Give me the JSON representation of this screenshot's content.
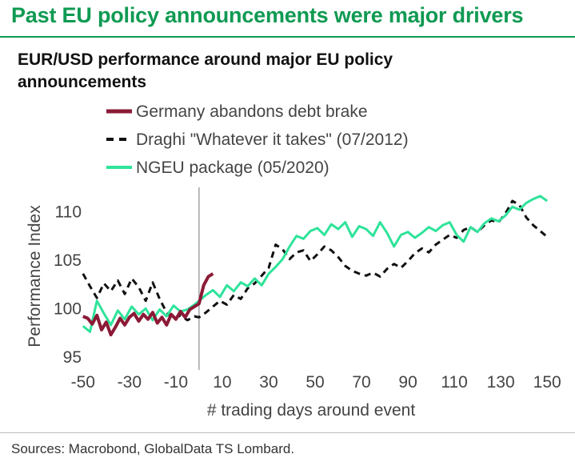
{
  "header": {
    "title": "Past EU policy announcements were major drivers"
  },
  "footer": {
    "source": "Sources: Macrobond, GlobalData TS Lombard."
  },
  "colors": {
    "accent": "#0f9a52",
    "germany": "#8b1a36",
    "draghi": "#111111",
    "ngeu": "#2fe39a"
  },
  "chart_data": {
    "type": "line",
    "title": "EUR/USD performance around major EU policy announcements",
    "xlabel": "# trading days around event",
    "ylabel": "Performance Index",
    "xlim": [
      -52,
      152
    ],
    "ylim": [
      94,
      113
    ],
    "xticks": [
      -50,
      -30,
      -10,
      10,
      30,
      50,
      70,
      90,
      110,
      130,
      150
    ],
    "yticks": [
      95,
      100,
      105,
      110
    ],
    "event_marker_x": 0,
    "legend_position": "top-center",
    "series": [
      {
        "name": "Germany abandons debt brake",
        "style": "solid",
        "color": "#8b1a36",
        "x": [
          -50,
          -48,
          -46,
          -44,
          -42,
          -40,
          -38,
          -36,
          -34,
          -32,
          -30,
          -28,
          -26,
          -24,
          -22,
          -20,
          -18,
          -16,
          -14,
          -12,
          -10,
          -8,
          -6,
          -4,
          -2,
          0,
          2,
          4,
          6
        ],
        "y": [
          99.2,
          99.0,
          98.4,
          99.3,
          97.8,
          98.6,
          97.3,
          98.1,
          99.0,
          98.3,
          99.1,
          99.5,
          98.7,
          99.4,
          98.9,
          99.6,
          98.5,
          99.1,
          98.3,
          99.4,
          98.9,
          99.7,
          99.1,
          99.9,
          100.2,
          100.5,
          102.4,
          103.3,
          103.6
        ]
      },
      {
        "name": "Draghi \"Whatever it takes\" (07/2012)",
        "style": "dashed",
        "color": "#111111",
        "x": [
          -50,
          -47,
          -44,
          -41,
          -38,
          -35,
          -32,
          -29,
          -26,
          -23,
          -20,
          -17,
          -14,
          -11,
          -8,
          -5,
          -2,
          0,
          3,
          6,
          9,
          12,
          15,
          18,
          21,
          24,
          27,
          30,
          33,
          36,
          39,
          42,
          45,
          48,
          51,
          54,
          57,
          60,
          63,
          66,
          69,
          72,
          75,
          78,
          81,
          84,
          87,
          90,
          93,
          96,
          99,
          102,
          105,
          108,
          111,
          114,
          117,
          120,
          123,
          126,
          129,
          132,
          135,
          138,
          141,
          144,
          147,
          150
        ],
        "y": [
          103.6,
          102.3,
          101.1,
          102.6,
          101.8,
          102.9,
          101.5,
          103.1,
          102.2,
          100.8,
          102.7,
          101.0,
          99.6,
          98.9,
          99.3,
          98.8,
          99.2,
          99.1,
          99.6,
          100.2,
          100.8,
          100.4,
          101.4,
          101.0,
          102.1,
          102.6,
          103.4,
          104.2,
          106.6,
          106.1,
          105.1,
          105.8,
          106.0,
          104.9,
          105.6,
          106.4,
          106.0,
          105.3,
          104.4,
          103.9,
          103.6,
          103.4,
          103.7,
          103.3,
          104.1,
          104.6,
          104.2,
          104.9,
          105.7,
          106.2,
          105.8,
          106.6,
          107.1,
          107.6,
          107.3,
          108.1,
          108.4,
          107.9,
          108.6,
          109.1,
          108.9,
          109.8,
          111.1,
          110.7,
          109.4,
          108.6,
          108.0,
          107.4
        ]
      },
      {
        "name": "NGEU package (05/2020)",
        "style": "solid",
        "color": "#2fe39a",
        "x": [
          -50,
          -47,
          -44,
          -41,
          -38,
          -35,
          -32,
          -29,
          -26,
          -23,
          -20,
          -17,
          -14,
          -11,
          -8,
          -5,
          -2,
          0,
          3,
          6,
          9,
          12,
          15,
          18,
          21,
          24,
          27,
          30,
          33,
          36,
          39,
          42,
          45,
          48,
          51,
          54,
          57,
          60,
          63,
          66,
          69,
          72,
          75,
          78,
          81,
          84,
          87,
          90,
          93,
          96,
          99,
          102,
          105,
          108,
          111,
          114,
          117,
          120,
          123,
          126,
          129,
          132,
          135,
          138,
          141,
          144,
          147,
          150
        ],
        "y": [
          98.2,
          97.6,
          100.8,
          99.5,
          98.3,
          99.8,
          98.9,
          100.2,
          99.4,
          100.0,
          98.8,
          99.9,
          99.2,
          100.3,
          99.7,
          99.9,
          100.4,
          100.8,
          101.4,
          101.9,
          101.2,
          102.4,
          101.8,
          102.7,
          102.3,
          103.1,
          102.4,
          103.6,
          104.3,
          105.1,
          106.4,
          107.5,
          107.2,
          108.0,
          108.3,
          107.6,
          108.7,
          108.2,
          108.9,
          107.4,
          108.5,
          108.2,
          107.5,
          108.9,
          107.8,
          106.4,
          107.6,
          107.9,
          107.3,
          107.8,
          108.4,
          108.0,
          108.6,
          108.9,
          107.6,
          106.9,
          108.4,
          107.9,
          108.8,
          109.3,
          109.0,
          109.6,
          110.5,
          110.2,
          110.9,
          111.3,
          111.6,
          111.1
        ]
      }
    ]
  }
}
